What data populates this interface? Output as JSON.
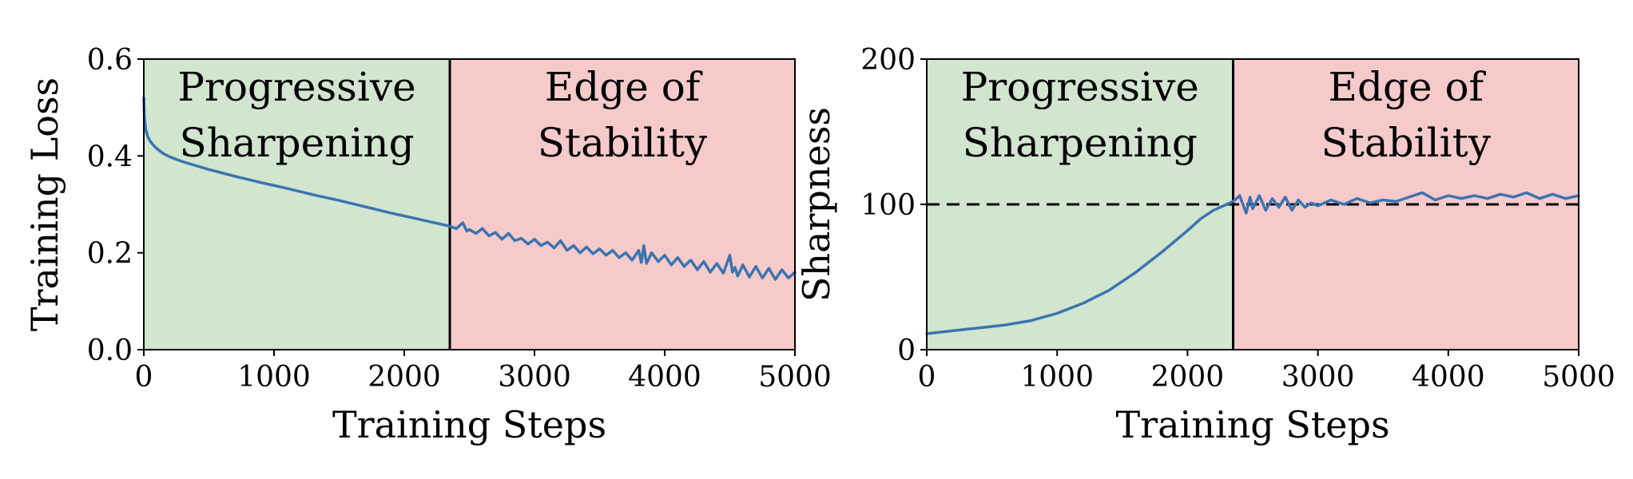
{
  "colors": {
    "region_ps": "#d1e5cf",
    "region_eos": "#f6caca",
    "line": "#3a74b0",
    "axis": "#000000",
    "threshold": "#000000"
  },
  "chart_data": [
    {
      "id": "loss",
      "type": "line",
      "title": "",
      "xlabel": "Training Steps",
      "ylabel": "Training Loss",
      "xlim": [
        0,
        5000
      ],
      "ylim": [
        0,
        0.6
      ],
      "xticks": [
        0,
        1000,
        2000,
        3000,
        4000,
        5000
      ],
      "xtick_labels": [
        "0",
        "1000",
        "2000",
        "3000",
        "4000",
        "5000"
      ],
      "yticks": [
        0.0,
        0.2,
        0.4,
        0.6
      ],
      "ytick_labels": [
        "0.0",
        "0.2",
        "0.4",
        "0.6"
      ],
      "regions": [
        {
          "name": "Progressive Sharpening",
          "lines": [
            "Progressive",
            "Sharpening"
          ],
          "x_start": 0,
          "x_end": 2350,
          "color_key": "region_ps"
        },
        {
          "name": "Edge of Stability",
          "lines": [
            "Edge of",
            "Stability"
          ],
          "x_start": 2350,
          "x_end": 5000,
          "color_key": "region_eos"
        }
      ],
      "vline_x": 2350,
      "series": [
        {
          "name": "Training Loss",
          "x": [
            0,
            5,
            15,
            30,
            50,
            75,
            100,
            150,
            200,
            300,
            400,
            500,
            700,
            900,
            1100,
            1300,
            1500,
            1700,
            1900,
            2100,
            2350,
            2400,
            2450,
            2480,
            2500,
            2550,
            2600,
            2650,
            2700,
            2750,
            2800,
            2850,
            2900,
            2950,
            3000,
            3050,
            3100,
            3150,
            3200,
            3250,
            3300,
            3350,
            3400,
            3450,
            3500,
            3550,
            3600,
            3650,
            3700,
            3750,
            3800,
            3820,
            3840,
            3860,
            3900,
            3950,
            4000,
            4050,
            4100,
            4150,
            4200,
            4250,
            4300,
            4350,
            4400,
            4450,
            4500,
            4520,
            4540,
            4560,
            4600,
            4650,
            4700,
            4750,
            4800,
            4850,
            4900,
            4950,
            5000
          ],
          "y": [
            0.52,
            0.48,
            0.455,
            0.44,
            0.43,
            0.422,
            0.415,
            0.405,
            0.398,
            0.388,
            0.38,
            0.372,
            0.358,
            0.345,
            0.333,
            0.32,
            0.308,
            0.295,
            0.282,
            0.27,
            0.255,
            0.25,
            0.262,
            0.245,
            0.248,
            0.24,
            0.25,
            0.235,
            0.242,
            0.228,
            0.24,
            0.225,
            0.23,
            0.218,
            0.228,
            0.215,
            0.222,
            0.21,
            0.225,
            0.205,
            0.215,
            0.2,
            0.212,
            0.198,
            0.208,
            0.195,
            0.205,
            0.19,
            0.2,
            0.185,
            0.205,
            0.18,
            0.215,
            0.178,
            0.2,
            0.182,
            0.195,
            0.175,
            0.19,
            0.172,
            0.185,
            0.165,
            0.182,
            0.16,
            0.178,
            0.158,
            0.195,
            0.16,
            0.17,
            0.152,
            0.175,
            0.15,
            0.172,
            0.148,
            0.168,
            0.145,
            0.165,
            0.148,
            0.16
          ]
        }
      ]
    },
    {
      "id": "sharpness",
      "type": "line",
      "title": "",
      "xlabel": "Training Steps",
      "ylabel": "Sharpness",
      "xlim": [
        0,
        5000
      ],
      "ylim": [
        0,
        200
      ],
      "xticks": [
        0,
        1000,
        2000,
        3000,
        4000,
        5000
      ],
      "xtick_labels": [
        "0",
        "1000",
        "2000",
        "3000",
        "4000",
        "5000"
      ],
      "yticks": [
        0,
        100,
        200
      ],
      "ytick_labels": [
        "0",
        "100",
        "200"
      ],
      "regions": [
        {
          "name": "Progressive Sharpening",
          "lines": [
            "Progressive",
            "Sharpening"
          ],
          "x_start": 0,
          "x_end": 2350,
          "color_key": "region_ps"
        },
        {
          "name": "Edge of Stability",
          "lines": [
            "Edge of",
            "Stability"
          ],
          "x_start": 2350,
          "x_end": 5000,
          "color_key": "region_eos"
        }
      ],
      "vline_x": 2350,
      "hline_y": 100,
      "series": [
        {
          "name": "Sharpness",
          "x": [
            0,
            200,
            400,
            600,
            800,
            1000,
            1200,
            1400,
            1600,
            1800,
            2000,
            2100,
            2200,
            2300,
            2350,
            2400,
            2450,
            2480,
            2500,
            2550,
            2600,
            2650,
            2700,
            2750,
            2800,
            2850,
            2900,
            2950,
            3000,
            3100,
            3200,
            3300,
            3400,
            3500,
            3600,
            3700,
            3800,
            3900,
            4000,
            4100,
            4200,
            4300,
            4400,
            4500,
            4600,
            4700,
            4800,
            4900,
            5000
          ],
          "y": [
            11,
            13,
            15,
            17,
            20,
            25,
            32,
            41,
            53,
            67,
            82,
            90,
            96,
            100,
            102,
            106,
            94,
            105,
            97,
            106,
            96,
            104,
            98,
            105,
            96,
            103,
            98,
            101,
            99,
            103,
            100,
            104,
            101,
            103,
            102,
            105,
            108,
            103,
            106,
            104,
            106,
            104,
            107,
            105,
            108,
            104,
            107,
            104,
            106
          ]
        }
      ]
    }
  ]
}
